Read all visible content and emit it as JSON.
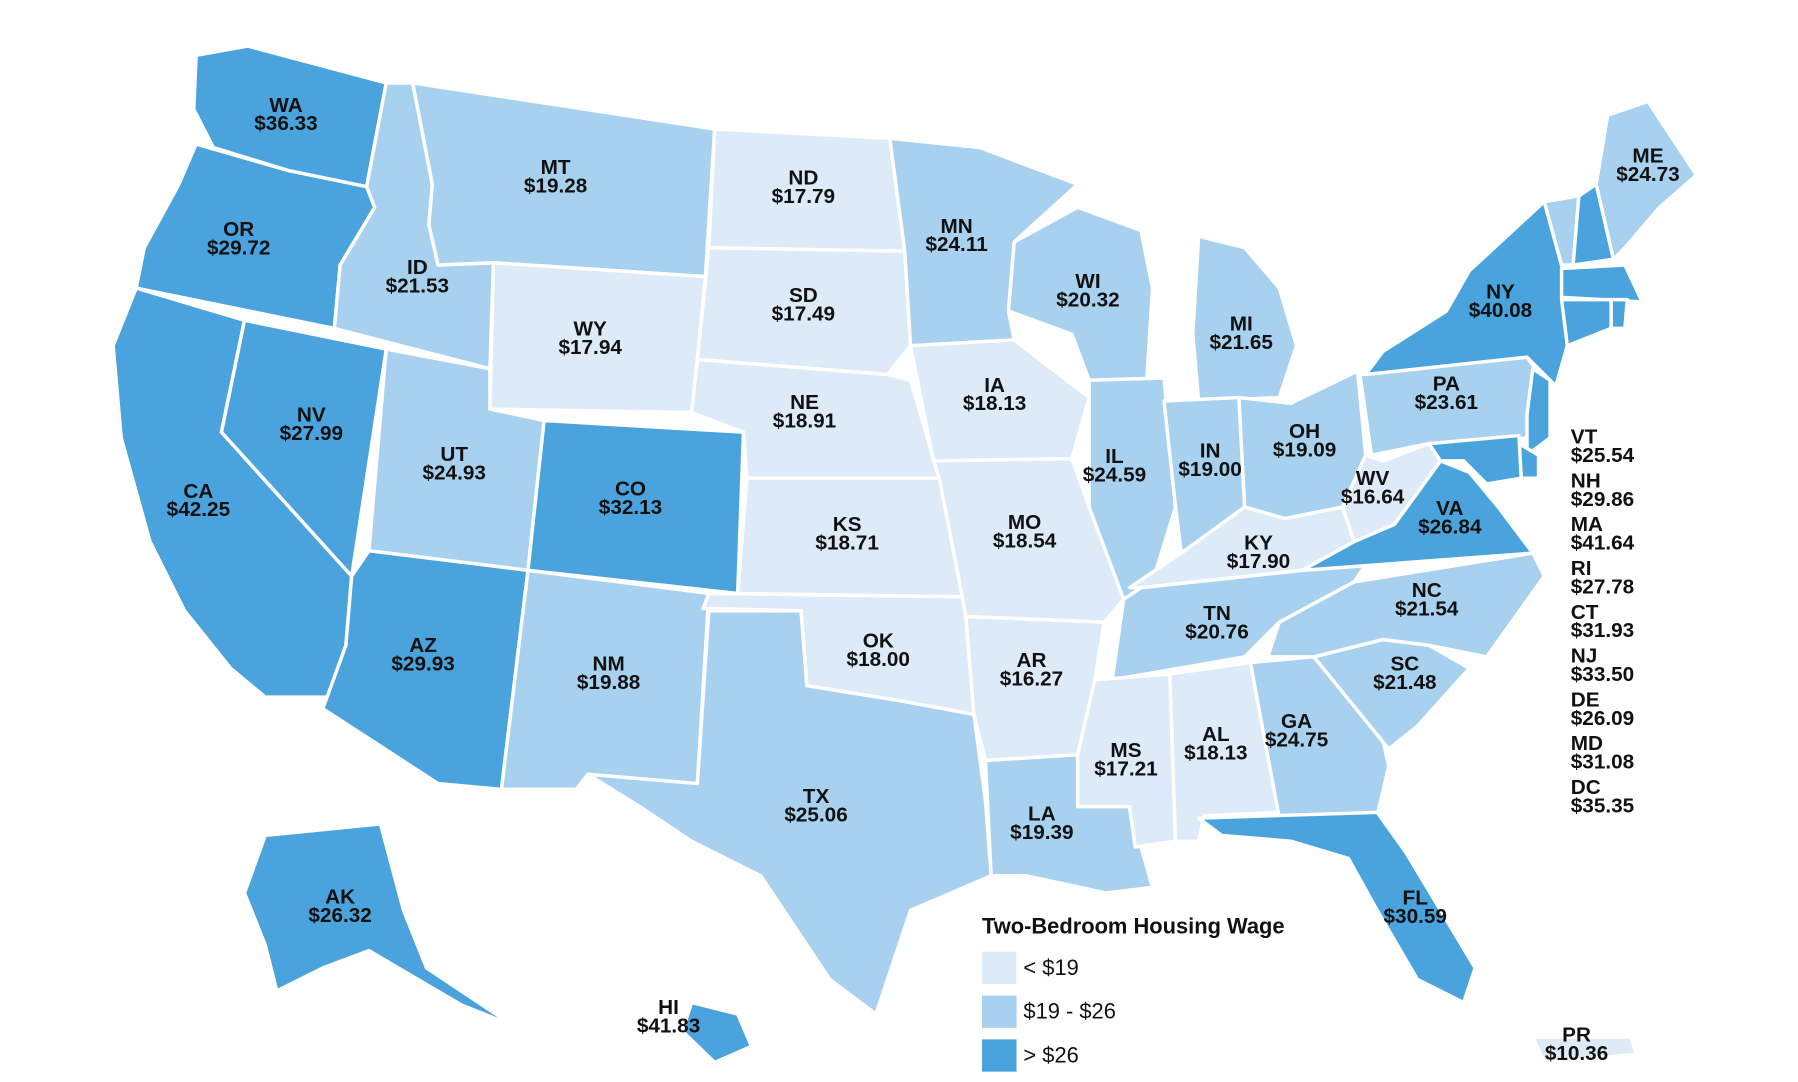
{
  "legend": {
    "title": "Two-Bedroom Housing Wage",
    "items": [
      {
        "label": "< $19",
        "color": "#ddeaf7"
      },
      {
        "label": "$19 - $26",
        "color": "#a8d1ef"
      },
      {
        "label": "> $26",
        "color": "#4aa3dc"
      }
    ]
  },
  "states": [
    {
      "abbr": "WA",
      "wage": "$36.33",
      "color": "#4aa3dc"
    },
    {
      "abbr": "OR",
      "wage": "$29.72",
      "color": "#4aa3dc"
    },
    {
      "abbr": "CA",
      "wage": "$42.25",
      "color": "#4aa3dc"
    },
    {
      "abbr": "NV",
      "wage": "$27.99",
      "color": "#4aa3dc"
    },
    {
      "abbr": "ID",
      "wage": "$21.53",
      "color": "#a8d1ef"
    },
    {
      "abbr": "MT",
      "wage": "$19.28",
      "color": "#a8d1ef"
    },
    {
      "abbr": "WY",
      "wage": "$17.94",
      "color": "#ddeaf7"
    },
    {
      "abbr": "UT",
      "wage": "$24.93",
      "color": "#a8d1ef"
    },
    {
      "abbr": "CO",
      "wage": "$32.13",
      "color": "#4aa3dc"
    },
    {
      "abbr": "AZ",
      "wage": "$29.93",
      "color": "#4aa3dc"
    },
    {
      "abbr": "NM",
      "wage": "$19.88",
      "color": "#a8d1ef"
    },
    {
      "abbr": "ND",
      "wage": "$17.79",
      "color": "#ddeaf7"
    },
    {
      "abbr": "SD",
      "wage": "$17.49",
      "color": "#ddeaf7"
    },
    {
      "abbr": "NE",
      "wage": "$18.91",
      "color": "#ddeaf7"
    },
    {
      "abbr": "KS",
      "wage": "$18.71",
      "color": "#ddeaf7"
    },
    {
      "abbr": "OK",
      "wage": "$18.00",
      "color": "#ddeaf7"
    },
    {
      "abbr": "TX",
      "wage": "$25.06",
      "color": "#a8d1ef"
    },
    {
      "abbr": "MN",
      "wage": "$24.11",
      "color": "#a8d1ef"
    },
    {
      "abbr": "IA",
      "wage": "$18.13",
      "color": "#ddeaf7"
    },
    {
      "abbr": "MO",
      "wage": "$18.54",
      "color": "#ddeaf7"
    },
    {
      "abbr": "AR",
      "wage": "$16.27",
      "color": "#ddeaf7"
    },
    {
      "abbr": "LA",
      "wage": "$19.39",
      "color": "#a8d1ef"
    },
    {
      "abbr": "WI",
      "wage": "$20.32",
      "color": "#a8d1ef"
    },
    {
      "abbr": "IL",
      "wage": "$24.59",
      "color": "#a8d1ef"
    },
    {
      "abbr": "MI",
      "wage": "$21.65",
      "color": "#a8d1ef"
    },
    {
      "abbr": "IN",
      "wage": "$19.00",
      "color": "#a8d1ef"
    },
    {
      "abbr": "OH",
      "wage": "$19.09",
      "color": "#a8d1ef"
    },
    {
      "abbr": "KY",
      "wage": "$17.90",
      "color": "#ddeaf7"
    },
    {
      "abbr": "TN",
      "wage": "$20.76",
      "color": "#a8d1ef"
    },
    {
      "abbr": "MS",
      "wage": "$17.21",
      "color": "#ddeaf7"
    },
    {
      "abbr": "AL",
      "wage": "$18.13",
      "color": "#ddeaf7"
    },
    {
      "abbr": "GA",
      "wage": "$24.75",
      "color": "#a8d1ef"
    },
    {
      "abbr": "FL",
      "wage": "$30.59",
      "color": "#4aa3dc"
    },
    {
      "abbr": "SC",
      "wage": "$21.48",
      "color": "#a8d1ef"
    },
    {
      "abbr": "NC",
      "wage": "$21.54",
      "color": "#a8d1ef"
    },
    {
      "abbr": "VA",
      "wage": "$26.84",
      "color": "#4aa3dc"
    },
    {
      "abbr": "WV",
      "wage": "$16.64",
      "color": "#ddeaf7"
    },
    {
      "abbr": "PA",
      "wage": "$23.61",
      "color": "#a8d1ef"
    },
    {
      "abbr": "NY",
      "wage": "$40.08",
      "color": "#4aa3dc"
    },
    {
      "abbr": "ME",
      "wage": "$24.73",
      "color": "#a8d1ef"
    },
    {
      "abbr": "VT",
      "wage": "$25.54",
      "color": "#a8d1ef"
    },
    {
      "abbr": "NH",
      "wage": "$29.86",
      "color": "#4aa3dc"
    },
    {
      "abbr": "MA",
      "wage": "$41.64",
      "color": "#4aa3dc"
    },
    {
      "abbr": "RI",
      "wage": "$27.78",
      "color": "#4aa3dc"
    },
    {
      "abbr": "CT",
      "wage": "$31.93",
      "color": "#4aa3dc"
    },
    {
      "abbr": "NJ",
      "wage": "$33.50",
      "color": "#4aa3dc"
    },
    {
      "abbr": "DE",
      "wage": "$26.09",
      "color": "#4aa3dc"
    },
    {
      "abbr": "MD",
      "wage": "$31.08",
      "color": "#4aa3dc"
    },
    {
      "abbr": "DC",
      "wage": "$35.35",
      "color": "#4aa3dc"
    },
    {
      "abbr": "AK",
      "wage": "$26.32",
      "color": "#4aa3dc"
    },
    {
      "abbr": "HI",
      "wage": "$41.83",
      "color": "#4aa3dc"
    },
    {
      "abbr": "PR",
      "wage": "$10.36",
      "color": "#ddeaf7"
    }
  ]
}
